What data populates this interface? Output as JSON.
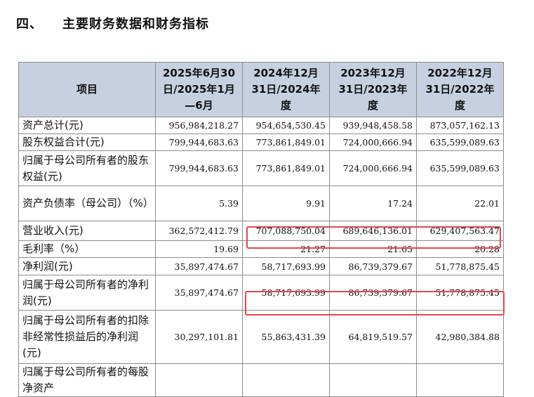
{
  "section": {
    "number": "四、",
    "title": "主要财务数据和财务指标"
  },
  "table": {
    "headers": [
      "项目",
      "2025年6月30日/2025年1月—6月",
      "2024年12月31日/2024年度",
      "2023年12月31日/2023年度",
      "2022年12月31日/2022年度"
    ],
    "rows": [
      {
        "label": "资产总计(元)",
        "values": [
          "956,984,218.27",
          "954,654,530.45",
          "939,948,458.58",
          "873,057,162.13"
        ]
      },
      {
        "label": "股东权益合计(元)",
        "values": [
          "799,944,683.63",
          "773,861,849.01",
          "724,000,666.94",
          "635,599,089.63"
        ]
      },
      {
        "label": "归属于母公司所有者的股东权益(元)",
        "values": [
          "799,944,683.63",
          "773,861,849.01",
          "724,000,666.94",
          "635,599,089.63"
        ]
      },
      {
        "label": "资产负债率（母公司）（%）",
        "values": [
          "5.39",
          "9.91",
          "17.24",
          "22.01"
        ]
      },
      {
        "label": "营业收入(元)",
        "values": [
          "362,572,412.79",
          "707,088,750.04",
          "689,646,136.01",
          "629,407,563.47"
        ]
      },
      {
        "label": "毛利率（%）",
        "values": [
          "19.69",
          "21.27",
          "21.65",
          "20.28"
        ]
      },
      {
        "label": "净利润(元)",
        "values": [
          "35,897,474.67",
          "58,717,693.99",
          "86,739,379.67",
          "51,778,875.45"
        ]
      },
      {
        "label": "归属于母公司所有者的净利润(元)",
        "values": [
          "35,897,474.67",
          "58,717,693.99",
          "86,739,379.67",
          "51,778,875.45"
        ]
      },
      {
        "label": "归属于母公司所有者的扣除非经常性损益后的净利润(元)",
        "values": [
          "30,297,101.81",
          "55,863,431.39",
          "64,819,519.57",
          "42,980,384.88"
        ]
      },
      {
        "label": "归属于母公司所有者的每股净资产",
        "values": [
          "",
          "",
          "",
          ""
        ]
      }
    ]
  },
  "highlight_color": "#e4454f"
}
